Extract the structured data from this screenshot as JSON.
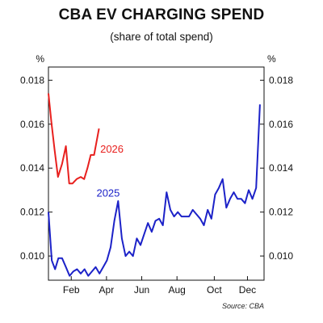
{
  "chart_data": {
    "type": "line",
    "title": "CBA EV CHARGING SPEND",
    "subtitle": "(share of total spend)",
    "y_unit_left": "%",
    "y_unit_right": "%",
    "ylim": [
      0.0089,
      0.0186
    ],
    "yticks": [
      "0.010",
      "0.012",
      "0.014",
      "0.016",
      "0.018"
    ],
    "ytick_values": [
      0.01,
      0.012,
      0.014,
      0.016,
      0.018
    ],
    "xlim_weeks": [
      0,
      52
    ],
    "xticks": [
      "Feb",
      "Apr",
      "Jun",
      "Aug",
      "Oct",
      "Dec"
    ],
    "xtick_weeks": [
      5.5,
      14,
      22.5,
      31,
      40,
      48
    ],
    "grid": false,
    "source": "Source: CBA",
    "series": [
      {
        "name": "2026",
        "color": "#e8201e",
        "x": [
          0,
          0.7,
          1.5,
          2.3,
          3.3,
          4.2,
          5.0,
          5.8,
          6.8,
          7.8,
          8.6,
          9.4,
          10.2,
          11.0,
          12.2
        ],
        "values": [
          0.0174,
          0.0161,
          0.0148,
          0.0136,
          0.0142,
          0.015,
          0.0133,
          0.0133,
          0.0135,
          0.0136,
          0.0135,
          0.014,
          0.0146,
          0.0146,
          0.0158
        ]
      },
      {
        "name": "2025",
        "color": "#1c22c8",
        "x": [
          0,
          0.8,
          1.6,
          2.4,
          3.3,
          4.2,
          5.1,
          6.0,
          6.9,
          7.8,
          8.7,
          9.6,
          10.5,
          11.4,
          12.3,
          13.2,
          14.1,
          15.0,
          15.9,
          16.8,
          17.7,
          18.6,
          19.5,
          20.4,
          21.3,
          22.2,
          23.1,
          24.0,
          24.9,
          25.8,
          26.7,
          27.6,
          28.5,
          29.4,
          30.3,
          31.2,
          32.1,
          33.0,
          33.9,
          34.8,
          35.7,
          36.6,
          37.5,
          38.4,
          39.3,
          40.2,
          41.1,
          42.0,
          42.9,
          43.8,
          44.7,
          45.6,
          46.5,
          47.4,
          48.3,
          49.2,
          50.1,
          51.0
        ],
        "values": [
          0.012,
          0.0098,
          0.0094,
          0.0099,
          0.0099,
          0.0095,
          0.0091,
          0.0093,
          0.0094,
          0.0092,
          0.0094,
          0.0091,
          0.0093,
          0.0095,
          0.0092,
          0.0095,
          0.0098,
          0.0104,
          0.0116,
          0.0125,
          0.0108,
          0.01,
          0.0102,
          0.01,
          0.0108,
          0.0105,
          0.011,
          0.0115,
          0.0111,
          0.0116,
          0.0117,
          0.0114,
          0.0129,
          0.0121,
          0.0118,
          0.012,
          0.0118,
          0.0118,
          0.0118,
          0.0121,
          0.0119,
          0.0117,
          0.0114,
          0.0121,
          0.0117,
          0.0128,
          0.0131,
          0.0135,
          0.0122,
          0.0126,
          0.0129,
          0.0126,
          0.0126,
          0.0124,
          0.013,
          0.0126,
          0.0131,
          0.0169
        ]
      }
    ],
    "series_labels": [
      {
        "text": "2026",
        "x": 15.3,
        "y": 0.0147
      },
      {
        "text": "2025",
        "x": 14.4,
        "y": 0.0127
      }
    ]
  }
}
